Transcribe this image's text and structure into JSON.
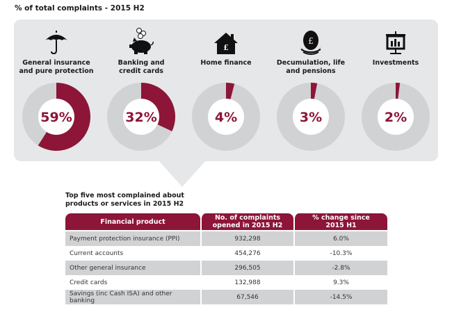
{
  "title": "% of total complaints - 2015 H2",
  "colors": {
    "accent": "#8c1538",
    "ring": "#d1d2d4",
    "panel": "#e6e7e8"
  },
  "categories": [
    {
      "label_line1": "General insurance",
      "label_line2": "and pure protection",
      "icon": "umbrella-icon"
    },
    {
      "label_line1": "Banking and",
      "label_line2": "credit cards",
      "icon": "piggy-bank-icon"
    },
    {
      "label_line1": "Home finance",
      "label_line2": "",
      "icon": "house-icon"
    },
    {
      "label_line1": "Decumulation, life",
      "label_line2": "and pensions",
      "icon": "nest-egg-icon"
    },
    {
      "label_line1": "Investments",
      "label_line2": "",
      "icon": "presentation-chart-icon"
    }
  ],
  "chart_data": {
    "type": "pie",
    "title": "% of total complaints - 2015 H2",
    "categories": [
      "General insurance and pure protection",
      "Banking and credit cards",
      "Home finance",
      "Decumulation, life and pensions",
      "Investments"
    ],
    "values": [
      59,
      32,
      4,
      3,
      2
    ],
    "value_labels": [
      "59%",
      "32%",
      "4%",
      "3%",
      "2%"
    ],
    "unit": "%"
  },
  "table": {
    "title_line1": "Top five most complained about",
    "title_line2": "products or services in 2015 H2",
    "headers": [
      {
        "line1": "Financial product",
        "line2": ""
      },
      {
        "line1": "No. of complaints",
        "line2": "opened in 2015 H2"
      },
      {
        "line1": "% change since",
        "line2": "2015 H1"
      }
    ],
    "rows": [
      {
        "product": "Payment protection insurance (PPI)",
        "complaints": "932,298",
        "change": "6.0%"
      },
      {
        "product": "Current accounts",
        "complaints": "454,276",
        "change": "-10.3%"
      },
      {
        "product": "Other general insurance",
        "complaints": "296,505",
        "change": "-2.8%"
      },
      {
        "product": "Credit cards",
        "complaints": "132,988",
        "change": "9.3%"
      },
      {
        "product": "Savings (inc Cash ISA) and other banking",
        "complaints": "67,546",
        "change": "-14.5%"
      }
    ]
  }
}
